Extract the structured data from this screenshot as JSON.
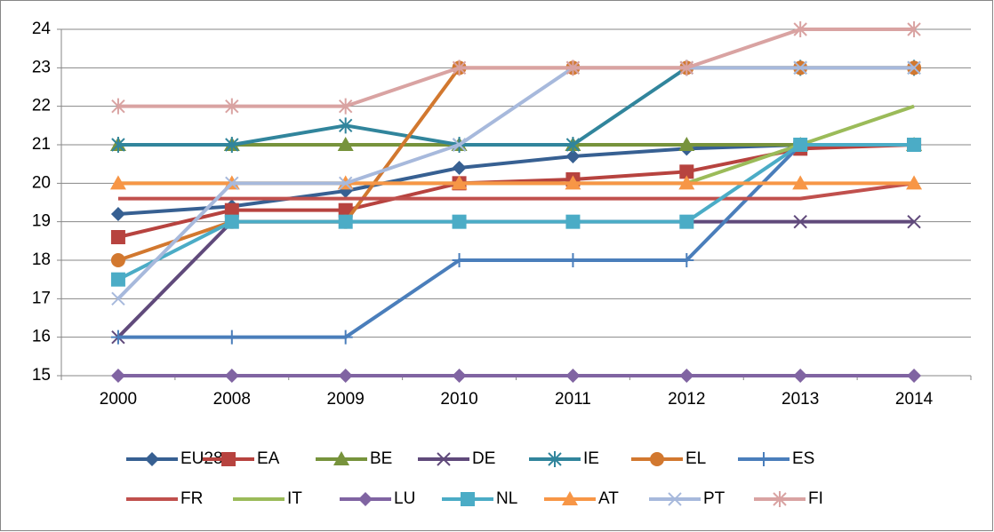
{
  "chart_data": {
    "type": "line",
    "categories": [
      "2000",
      "2008",
      "2009",
      "2010",
      "2011",
      "2012",
      "2013",
      "2014"
    ],
    "ylim": [
      15,
      24
    ],
    "yticks": [
      15,
      16,
      17,
      18,
      19,
      20,
      21,
      22,
      23,
      24
    ],
    "grid": true,
    "legend": "bottom",
    "series": [
      {
        "name": "EU28",
        "color": "#376092",
        "marker": "diamond",
        "values": [
          19.2,
          19.4,
          19.8,
          20.4,
          20.7,
          20.9,
          21,
          21
        ]
      },
      {
        "name": "EA",
        "color": "#B7433F",
        "marker": "square",
        "values": [
          18.6,
          19.3,
          19.3,
          20,
          20.1,
          20.3,
          20.9,
          21
        ]
      },
      {
        "name": "BE",
        "color": "#77933C",
        "marker": "triangle",
        "values": [
          21,
          21,
          21,
          21,
          21,
          21,
          21,
          21
        ]
      },
      {
        "name": "DE",
        "color": "#604A7B",
        "marker": "x",
        "values": [
          16,
          19,
          19,
          19,
          19,
          19,
          19,
          19
        ]
      },
      {
        "name": "IE",
        "color": "#31859C",
        "marker": "star",
        "values": [
          21,
          21,
          21.5,
          21,
          21,
          23,
          23,
          23
        ]
      },
      {
        "name": "EL",
        "color": "#D2782F",
        "marker": "circle",
        "values": [
          18,
          19,
          19,
          23,
          23,
          23,
          23,
          23
        ]
      },
      {
        "name": "ES",
        "color": "#4A7EBB",
        "marker": "plus",
        "values": [
          16,
          16,
          16,
          18,
          18,
          18,
          21,
          21
        ]
      },
      {
        "name": "FR",
        "color": "#C0504D",
        "values": [
          19.6,
          19.6,
          19.6,
          19.6,
          19.6,
          19.6,
          19.6,
          20
        ]
      },
      {
        "name": "IT",
        "color": "#9BBB59",
        "values": [
          20,
          20,
          20,
          20,
          20,
          20,
          21,
          22
        ]
      },
      {
        "name": "LU",
        "color": "#8064A2",
        "marker": "diamond",
        "values": [
          15,
          15,
          15,
          15,
          15,
          15,
          15,
          15
        ]
      },
      {
        "name": "NL",
        "color": "#4BACC6",
        "marker": "square",
        "values": [
          17.5,
          19,
          19,
          19,
          19,
          19,
          21,
          21
        ]
      },
      {
        "name": "AT",
        "color": "#F79646",
        "marker": "triangle",
        "values": [
          20,
          20,
          20,
          20,
          20,
          20,
          20,
          20
        ]
      },
      {
        "name": "PT",
        "color": "#A7B9DC",
        "marker": "x",
        "values": [
          17,
          20,
          20,
          21,
          23,
          23,
          23,
          23
        ]
      },
      {
        "name": "FI",
        "color": "#D9A3A2",
        "marker": "star",
        "values": [
          22,
          22,
          22,
          23,
          23,
          23,
          24,
          24
        ]
      }
    ]
  }
}
